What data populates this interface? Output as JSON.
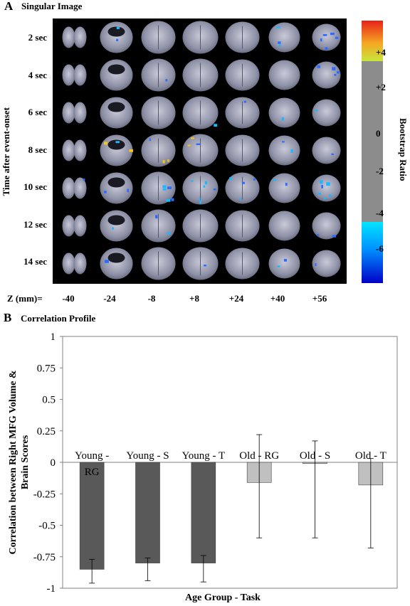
{
  "panel_a": {
    "letter": "A",
    "title": "Singular Image",
    "y_axis_label": "Time after event-onset",
    "row_labels": [
      "2 sec",
      "4 sec",
      "6 sec",
      "8 sec",
      "10 sec",
      "12 sec",
      "14 sec"
    ],
    "z_axis_prefix": "Z (mm)=",
    "z_labels": [
      "-40",
      "-24",
      "-8",
      "+8",
      "+24",
      "+40",
      "+56"
    ],
    "colorbar": {
      "label": "Bootstrap Ratio",
      "ticks": [
        "+4",
        "+2",
        "0",
        "-2",
        "-4",
        "-6"
      ],
      "colors": {
        "positive_top": "#e8201a",
        "positive_mid": "#f5a623",
        "positive_low": "#c8e63c",
        "neutral": "#8c8c8c",
        "negative_low": "#00e5ff",
        "negative_high": "#0000c8"
      }
    }
  },
  "panel_b": {
    "letter": "B",
    "title": "Correlation Profile"
  },
  "chart_data": {
    "type": "bar",
    "categories": [
      "Young - RG",
      "Young - S",
      "Young - T",
      "Old - RG",
      "Old - S",
      "Old - T"
    ],
    "category_display": [
      [
        "Young -",
        "RG"
      ],
      [
        "Young - S"
      ],
      [
        "Young - T"
      ],
      [
        "Old - RG"
      ],
      [
        "Old - S"
      ],
      [
        "Old - T"
      ]
    ],
    "values": [
      -0.85,
      -0.8,
      -0.8,
      -0.16,
      -0.01,
      -0.18
    ],
    "error_upper": [
      -0.77,
      -0.76,
      -0.74,
      0.22,
      0.17,
      0.03
    ],
    "error_lower": [
      -0.96,
      -0.94,
      -0.95,
      -0.6,
      -0.6,
      -0.68
    ],
    "colors": [
      "#595959",
      "#595959",
      "#595959",
      "#c0c0c0",
      "#c0c0c0",
      "#c0c0c0"
    ],
    "xlabel": "Age Group - Task",
    "ylabel": "Correlation between Right MFG Volume & Brain Scores",
    "ylim": [
      -1,
      1
    ],
    "yticks": [
      "1",
      "0.75",
      "0.5",
      "0.25",
      "0",
      "-0.25",
      "-0.5",
      "-0.75",
      "-1"
    ],
    "grid": false
  }
}
